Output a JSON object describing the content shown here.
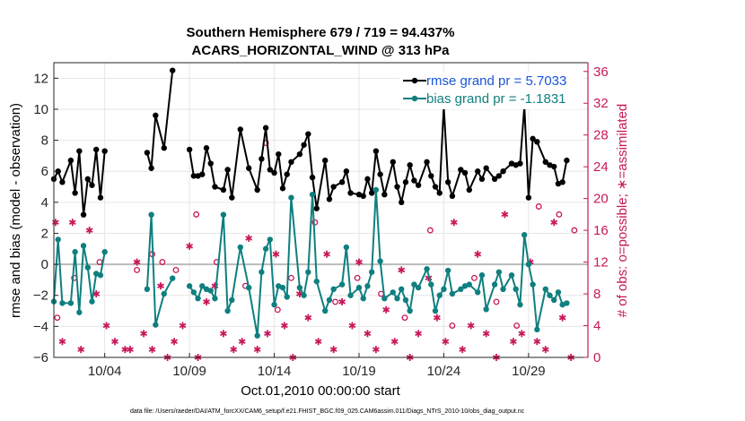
{
  "chart_data": {
    "type": "line",
    "title": "Southern Hemisphere 679 / 719 = 94.437%",
    "subtitle": "ACARS_HORIZONTAL_WIND @ 313 hPa",
    "xlabel": "Oct.01,2010 00:00:00 start",
    "ylabel": "rmse and bias (model - observation)",
    "y2label": "# of obs: o=possible; ∗=assimilated",
    "footnote": "data file: /Users/raeder/DAI/ATM_forcXX/CAM6_setup/f.e21.FHIST_BGC.f09_025.CAM6assim.011/Diags_NTrS_2010-10/obs_diag_output.nc",
    "xlim": [
      1,
      32.5
    ],
    "ylim": [
      -6,
      13
    ],
    "y2lim": [
      0,
      37.1
    ],
    "xtick_values": [
      4,
      9,
      14,
      19,
      24,
      29
    ],
    "xtick_labels": [
      "10/04",
      "10/09",
      "10/14",
      "10/19",
      "10/24",
      "10/29"
    ],
    "ytick_values": [
      -6,
      -4,
      -2,
      0,
      2,
      4,
      6,
      8,
      10,
      12
    ],
    "ytick_labels": [
      "−6",
      "−4",
      "−2",
      "0",
      "2",
      "4",
      "6",
      "8",
      "10",
      "12"
    ],
    "y2tick_values": [
      0,
      4,
      8,
      12,
      16,
      20,
      24,
      28,
      32,
      36
    ],
    "y2tick_labels": [
      "0",
      "4",
      "8",
      "12",
      "16",
      "20",
      "24",
      "28",
      "32",
      "36"
    ],
    "grid": true,
    "legend_position": "top-right",
    "colors": {
      "rmse": "#000000",
      "bias": "#0f7f7f",
      "obs": "#c8175a",
      "right_axis": "#c8175a",
      "zero_line": "#bbbbbb"
    },
    "series": [
      {
        "name": "rmse grand pr = 5.7033",
        "axis": "left",
        "x": [
          1.0,
          1.25,
          1.5,
          2.0,
          2.25,
          2.5,
          2.75,
          3.0,
          3.25,
          3.5,
          3.75,
          4.0,
          6.5,
          6.75,
          7.0,
          7.5,
          8.0,
          9.0,
          9.25,
          9.5,
          9.75,
          10.0,
          10.25,
          10.5,
          11.0,
          11.25,
          11.5,
          12.0,
          12.5,
          13.0,
          13.25,
          13.5,
          13.75,
          14.0,
          14.25,
          14.5,
          14.75,
          15.0,
          15.5,
          15.75,
          16.0,
          16.25,
          16.5,
          17.0,
          17.25,
          17.5,
          18.0,
          18.25,
          18.5,
          19.0,
          19.25,
          19.5,
          19.75,
          20.0,
          20.25,
          20.5,
          21.0,
          21.25,
          21.5,
          21.75,
          22.0,
          22.25,
          22.5,
          23.0,
          23.25,
          23.5,
          23.75,
          24.0,
          24.25,
          24.5,
          25.0,
          25.25,
          25.5,
          26.0,
          26.25,
          26.5,
          27.0,
          27.25,
          27.5,
          28.0,
          28.25,
          28.5,
          28.75,
          29.0,
          29.25,
          29.5,
          30.0,
          30.25,
          30.5,
          30.75,
          31.0,
          31.25
        ],
        "values": [
          5.5,
          6.0,
          5.3,
          6.7,
          4.6,
          7.3,
          3.2,
          5.5,
          5.1,
          7.4,
          4.3,
          7.3,
          7.2,
          6.2,
          9.6,
          7.5,
          12.5,
          7.4,
          5.7,
          5.7,
          5.8,
          7.5,
          6.5,
          5.0,
          4.8,
          6.1,
          4.3,
          8.7,
          6.2,
          4.8,
          6.8,
          8.8,
          6.1,
          5.9,
          7.1,
          4.9,
          5.8,
          6.6,
          7.1,
          7.7,
          8.4,
          5.6,
          3.6,
          6.7,
          4.2,
          5.0,
          5.3,
          6.0,
          4.6,
          4.5,
          4.4,
          5.5,
          4.6,
          7.3,
          5.8,
          4.5,
          6.6,
          5.0,
          4.0,
          5.3,
          6.4,
          5.4,
          5.1,
          6.6,
          5.7,
          5.0,
          4.6,
          10.2,
          5.3,
          4.4,
          6.1,
          5.9,
          4.8,
          6.0,
          5.5,
          6.2,
          5.5,
          5.7,
          6.0,
          6.5,
          6.4,
          6.5,
          10.2,
          4.3,
          8.1,
          7.9,
          6.6,
          6.4,
          6.3,
          5.2,
          5.3,
          6.7
        ]
      },
      {
        "name": "bias grand pr = -1.1831",
        "axis": "left",
        "x": [
          1.0,
          1.25,
          1.5,
          2.0,
          2.25,
          2.5,
          2.75,
          3.0,
          3.25,
          3.5,
          3.75,
          4.0,
          6.5,
          6.75,
          7.0,
          7.5,
          8.0,
          9.0,
          9.25,
          9.5,
          9.75,
          10.0,
          10.25,
          10.5,
          11.0,
          11.25,
          11.5,
          12.0,
          12.5,
          13.0,
          13.25,
          13.5,
          13.75,
          14.0,
          14.25,
          14.5,
          14.75,
          15.0,
          15.5,
          15.75,
          16.0,
          16.25,
          16.5,
          17.0,
          17.25,
          17.5,
          18.0,
          18.25,
          18.5,
          19.0,
          19.25,
          19.5,
          19.75,
          20.0,
          20.25,
          20.5,
          21.0,
          21.25,
          21.5,
          21.75,
          22.0,
          22.25,
          22.5,
          23.0,
          23.25,
          23.5,
          23.75,
          24.0,
          24.25,
          24.5,
          25.0,
          25.25,
          25.5,
          26.0,
          26.25,
          26.5,
          27.0,
          27.25,
          27.5,
          28.0,
          28.25,
          28.5,
          28.75,
          29.0,
          29.25,
          29.5,
          30.0,
          30.25,
          30.5,
          30.75,
          31.0,
          31.25
        ],
        "values": [
          -2.4,
          1.6,
          -2.5,
          -2.5,
          0.8,
          -3.1,
          1.2,
          -0.2,
          -2.4,
          -0.6,
          -0.7,
          0.8,
          -1.6,
          3.2,
          -3.9,
          -1.9,
          -0.9,
          -1.4,
          -1.8,
          -2.2,
          -1.4,
          -1.6,
          -1.7,
          -2.2,
          3.2,
          -3.0,
          -2.3,
          1.1,
          -1.5,
          -4.6,
          -0.5,
          1.0,
          1.6,
          -2.6,
          -1.4,
          -1.5,
          -2.1,
          4.3,
          -1.5,
          -2.0,
          -0.5,
          4.5,
          -1.1,
          -3.0,
          -2.3,
          -1.6,
          -1.3,
          1.1,
          -2.0,
          -1.5,
          -2.2,
          -1.4,
          -0.5,
          4.8,
          0.2,
          -2.2,
          -1.8,
          -2.2,
          -1.6,
          -2.3,
          -3.0,
          -1.3,
          -1.5,
          -0.3,
          -1.3,
          -3.0,
          -2.0,
          -1.6,
          -0.4,
          -1.9,
          -1.6,
          -1.4,
          -1.3,
          -1.8,
          -0.7,
          -2.9,
          -1.3,
          -0.5,
          -1.6,
          -0.7,
          -1.6,
          -2.6,
          1.9,
          0.0,
          -1.3,
          -4.2,
          -1.6,
          -2.0,
          -2.3,
          -1.8,
          -2.6,
          -2.5
        ]
      },
      {
        "name": "possible",
        "axis": "right",
        "marker": "o",
        "x": [
          1.2,
          2.2,
          3.7,
          5.9,
          6.8,
          7.4,
          8.2,
          9.4,
          10.6,
          12.3,
          13.5,
          14.2,
          15.0,
          16.4,
          17.6,
          18.9,
          20.3,
          21.7,
          23.2,
          24.5,
          25.8,
          27.1,
          28.3,
          29.6,
          30.8,
          31.7
        ],
        "values": [
          5,
          10,
          12,
          11,
          13,
          12,
          11,
          18,
          12,
          9,
          27,
          6,
          10,
          17,
          7,
          10,
          8,
          5,
          16,
          4,
          10,
          7,
          4,
          19,
          18,
          16
        ]
      },
      {
        "name": "assimilated",
        "axis": "right",
        "marker": "*",
        "x": [
          1.1,
          1.5,
          2.1,
          2.6,
          3.1,
          3.5,
          4.1,
          4.6,
          5.2,
          5.5,
          5.9,
          6.3,
          6.8,
          7.3,
          7.7,
          8.1,
          8.6,
          9.0,
          9.5,
          10.0,
          10.5,
          11.0,
          11.6,
          12.1,
          12.5,
          13.0,
          13.6,
          14.1,
          14.6,
          15.1,
          15.5,
          16.0,
          16.6,
          17.1,
          17.5,
          18.0,
          18.6,
          19.0,
          19.5,
          20.0,
          20.6,
          21.1,
          21.5,
          22.0,
          22.5,
          23.1,
          23.6,
          24.1,
          24.6,
          25.1,
          25.6,
          26.0,
          26.5,
          27.1,
          27.6,
          28.1,
          28.6,
          29.1,
          29.5,
          30.0,
          30.5,
          31.0,
          31.5
        ],
        "values": [
          17,
          2,
          17,
          1,
          16,
          8,
          4,
          2,
          1,
          1,
          12,
          3,
          1,
          9,
          0,
          2,
          4,
          14,
          0,
          7,
          9,
          3,
          1,
          2,
          15,
          1,
          3,
          13,
          4,
          0,
          8,
          5,
          2,
          13,
          1,
          7,
          4,
          12,
          3,
          1,
          6,
          2,
          11,
          0,
          3,
          10,
          5,
          2,
          17,
          1,
          4,
          13,
          3,
          0,
          18,
          2,
          3,
          12,
          2,
          1,
          17,
          5,
          0
        ]
      }
    ]
  }
}
